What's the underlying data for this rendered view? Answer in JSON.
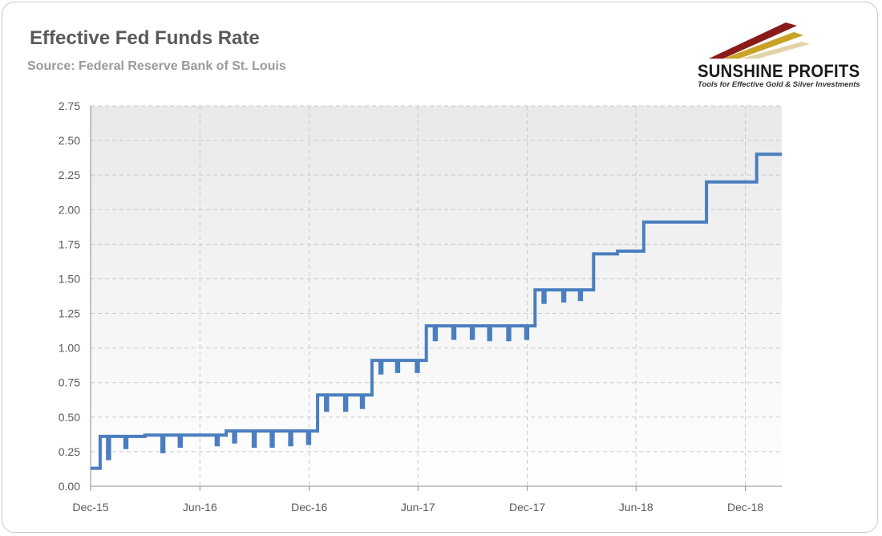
{
  "header": {
    "title": "Effective Fed Funds Rate",
    "subtitle": "Source: Federal Reserve Bank of St. Louis"
  },
  "logo": {
    "name": "SUNSHINE PROFITS",
    "tagline": "Tools for Effective Gold & Silver Investments",
    "colors": [
      "#8b1a1a",
      "#c9a227",
      "#e0d4a8"
    ]
  },
  "colors": {
    "line": "#4a7ebf",
    "grid": "#c8c8c8",
    "plot_bg_top": "#e9e9e9",
    "plot_bg_bottom": "#ffffff",
    "axis_text": "#595959",
    "title": "#5a5a5a",
    "subtitle": "#9a9a9a"
  },
  "chart_data": {
    "type": "line",
    "title": "Effective Fed Funds Rate",
    "xlabel": "",
    "ylabel": "",
    "x_start": "2015-12-01",
    "x_end": "2019-01-31",
    "ylim": [
      0,
      2.75
    ],
    "yticks": [
      "0.00",
      "0.25",
      "0.50",
      "0.75",
      "1.00",
      "1.25",
      "1.50",
      "1.75",
      "2.00",
      "2.25",
      "2.50",
      "2.75"
    ],
    "xticks": [
      {
        "date": "2015-12-01",
        "label": "Dec-15"
      },
      {
        "date": "2016-06-01",
        "label": "Jun-16"
      },
      {
        "date": "2016-12-01",
        "label": "Dec-16"
      },
      {
        "date": "2017-06-01",
        "label": "Jun-17"
      },
      {
        "date": "2017-12-01",
        "label": "Dec-17"
      },
      {
        "date": "2018-06-01",
        "label": "Jun-18"
      },
      {
        "date": "2018-12-01",
        "label": "Dec-18"
      }
    ],
    "grid": "both-dashed",
    "legend": "none",
    "series": [
      {
        "steps": [
          {
            "start": "2015-12-01",
            "end": "2015-12-16",
            "value": 0.13
          },
          {
            "start": "2015-12-17",
            "end": "2016-02-29",
            "value": 0.36
          },
          {
            "start": "2016-03-01",
            "end": "2016-05-31",
            "value": 0.37
          },
          {
            "start": "2016-06-01",
            "end": "2016-07-14",
            "value": 0.37
          },
          {
            "start": "2016-07-15",
            "end": "2016-12-14",
            "value": 0.4
          },
          {
            "start": "2016-12-15",
            "end": "2017-03-15",
            "value": 0.66
          },
          {
            "start": "2017-03-16",
            "end": "2017-06-14",
            "value": 0.91
          },
          {
            "start": "2017-06-15",
            "end": "2017-12-13",
            "value": 1.16
          },
          {
            "start": "2017-12-14",
            "end": "2018-03-21",
            "value": 1.42
          },
          {
            "start": "2018-03-22",
            "end": "2018-04-30",
            "value": 1.68
          },
          {
            "start": "2018-05-01",
            "end": "2018-06-13",
            "value": 1.7
          },
          {
            "start": "2018-06-14",
            "end": "2018-06-30",
            "value": 1.91
          },
          {
            "start": "2018-07-01",
            "end": "2018-09-26",
            "value": 1.91
          },
          {
            "start": "2018-09-27",
            "end": "2018-12-19",
            "value": 2.2
          },
          {
            "start": "2018-12-20",
            "end": "2019-01-31",
            "value": 2.4
          }
        ],
        "dips": [
          {
            "date": "2015-12-31",
            "value": 0.2
          },
          {
            "date": "2016-01-29",
            "value": 0.28
          },
          {
            "date": "2016-02-29",
            "value": 0.29
          },
          {
            "date": "2016-03-31",
            "value": 0.25
          },
          {
            "date": "2016-04-29",
            "value": 0.29
          },
          {
            "date": "2016-05-31",
            "value": 0.3
          },
          {
            "date": "2016-06-30",
            "value": 0.3
          },
          {
            "date": "2016-07-29",
            "value": 0.32
          },
          {
            "date": "2016-08-31",
            "value": 0.29
          },
          {
            "date": "2016-09-30",
            "value": 0.29
          },
          {
            "date": "2016-10-31",
            "value": 0.3
          },
          {
            "date": "2016-11-30",
            "value": 0.31
          },
          {
            "date": "2016-12-30",
            "value": 0.55
          },
          {
            "date": "2017-01-31",
            "value": 0.55
          },
          {
            "date": "2017-02-28",
            "value": 0.57
          },
          {
            "date": "2017-03-31",
            "value": 0.82
          },
          {
            "date": "2017-04-28",
            "value": 0.83
          },
          {
            "date": "2017-05-31",
            "value": 0.83
          },
          {
            "date": "2017-06-30",
            "value": 1.06
          },
          {
            "date": "2017-07-31",
            "value": 1.07
          },
          {
            "date": "2017-08-31",
            "value": 1.07
          },
          {
            "date": "2017-09-29",
            "value": 1.06
          },
          {
            "date": "2017-10-31",
            "value": 1.06
          },
          {
            "date": "2017-11-30",
            "value": 1.07
          },
          {
            "date": "2017-12-29",
            "value": 1.33
          },
          {
            "date": "2018-01-31",
            "value": 1.34
          },
          {
            "date": "2018-02-28",
            "value": 1.35
          }
        ]
      }
    ]
  }
}
